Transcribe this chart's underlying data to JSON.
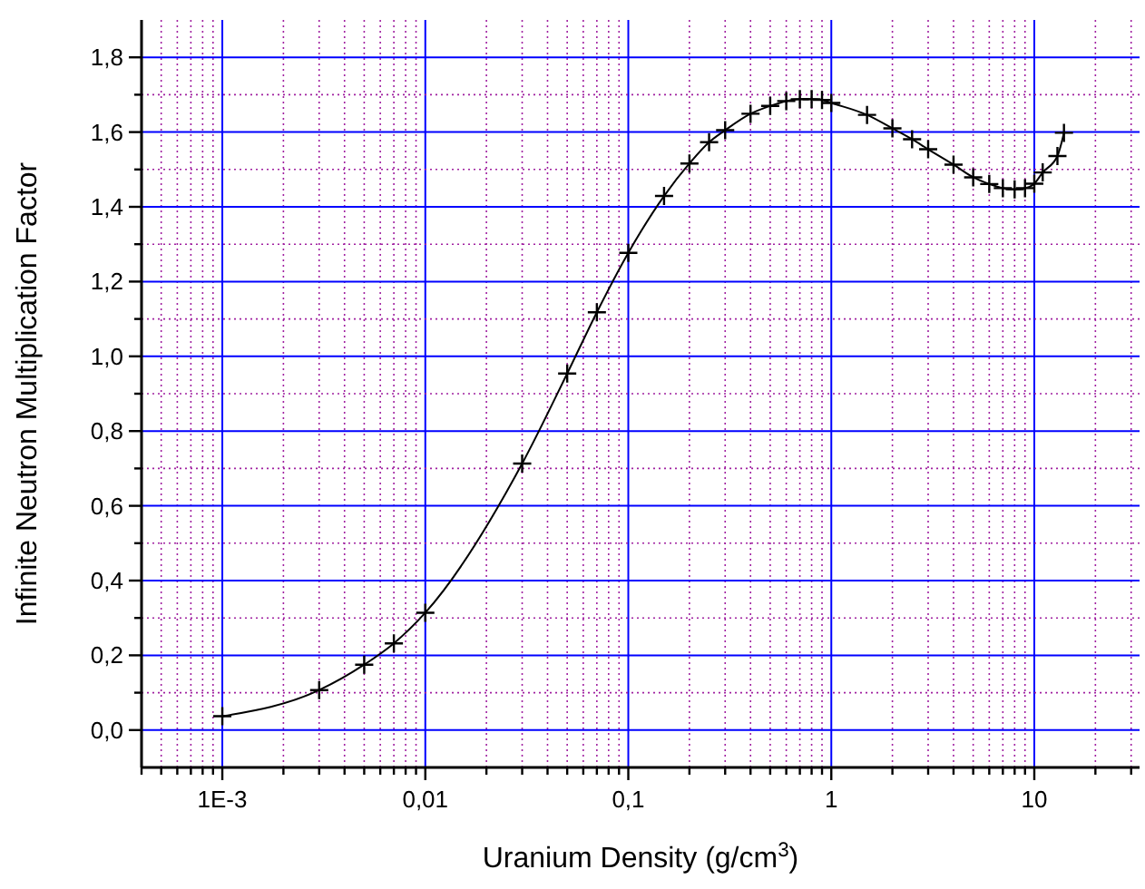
{
  "chart_data": {
    "type": "line",
    "xlabel": "Uranium Density (g/cm$^{3}$)",
    "ylabel": "Infinite Neutron Multiplication Factor",
    "log": "x",
    "grid": true,
    "marker": "cross",
    "line_style": "solid",
    "xlim": [
      0.0004,
      33
    ],
    "ylim": [
      -0.1,
      1.9
    ],
    "xticks": [
      {
        "value": 0.0004,
        "label": null
      },
      {
        "value": 0.0005,
        "label": null
      },
      {
        "value": 0.0006,
        "label": null
      },
      {
        "value": 0.0007,
        "label": null
      },
      {
        "value": 0.0008,
        "label": null
      },
      {
        "value": 0.0009,
        "label": null
      },
      {
        "value": 0.001,
        "label": "1E-3"
      },
      {
        "value": 0.002,
        "label": null
      },
      {
        "value": 0.003,
        "label": null
      },
      {
        "value": 0.004,
        "label": null
      },
      {
        "value": 0.005,
        "label": null
      },
      {
        "value": 0.006,
        "label": null
      },
      {
        "value": 0.007,
        "label": null
      },
      {
        "value": 0.008,
        "label": null
      },
      {
        "value": 0.009,
        "label": null
      },
      {
        "value": 0.01,
        "label": "0,01"
      },
      {
        "value": 0.02,
        "label": null
      },
      {
        "value": 0.03,
        "label": null
      },
      {
        "value": 0.04,
        "label": null
      },
      {
        "value": 0.05,
        "label": null
      },
      {
        "value": 0.06,
        "label": null
      },
      {
        "value": 0.07,
        "label": null
      },
      {
        "value": 0.08,
        "label": null
      },
      {
        "value": 0.09,
        "label": null
      },
      {
        "value": 0.1,
        "label": "0,1"
      },
      {
        "value": 0.2,
        "label": null
      },
      {
        "value": 0.3,
        "label": null
      },
      {
        "value": 0.4,
        "label": null
      },
      {
        "value": 0.5,
        "label": null
      },
      {
        "value": 0.6,
        "label": null
      },
      {
        "value": 0.7,
        "label": null
      },
      {
        "value": 0.8,
        "label": null
      },
      {
        "value": 0.9,
        "label": null
      },
      1,
      {
        "value": 2,
        "label": null
      },
      {
        "value": 3,
        "label": null
      },
      {
        "value": 4,
        "label": null
      },
      {
        "value": 5,
        "label": null
      },
      {
        "value": 6,
        "label": null
      },
      {
        "value": 7,
        "label": null
      },
      {
        "value": 8,
        "label": null
      },
      {
        "value": 9,
        "label": null
      },
      10,
      {
        "value": 20,
        "label": null
      },
      {
        "value": 30,
        "label": null
      }
    ],
    "yticks": [
      {
        "value": 0,
        "label": "0,0"
      },
      {
        "value": 0.1,
        "label": null
      },
      {
        "value": 0.2,
        "label": "0,2"
      },
      {
        "value": 0.3,
        "label": null
      },
      {
        "value": 0.4,
        "label": "0,4"
      },
      {
        "value": 0.5,
        "label": null
      },
      {
        "value": 0.6,
        "label": "0,6"
      },
      {
        "value": 0.7,
        "label": null
      },
      {
        "value": 0.8,
        "label": "0,8"
      },
      {
        "value": 0.9,
        "label": null
      },
      {
        "value": 1,
        "label": "1,0"
      },
      {
        "value": 1.1,
        "label": null
      },
      {
        "value": 1.2,
        "label": "1,2"
      },
      {
        "value": 1.3,
        "label": null
      },
      {
        "value": 1.4,
        "label": "1,4"
      },
      {
        "value": 1.5,
        "label": null
      },
      {
        "value": 1.6,
        "label": "1,6"
      },
      {
        "value": 1.7,
        "label": null
      },
      {
        "value": 1.8,
        "label": "1,8"
      }
    ],
    "series": [
      {
        "color": "#000000",
        "x": [
          0.001,
          0.003,
          0.005,
          0.007,
          0.01,
          0.03,
          0.05,
          0.07,
          0.1,
          0.15,
          0.2,
          0.25,
          0.3,
          0.4,
          0.5,
          0.6,
          0.7,
          0.8,
          0.9,
          1,
          1.5,
          2,
          2.5,
          3,
          4,
          5,
          6,
          7,
          8,
          9,
          10,
          11,
          13,
          14
        ],
        "values": [
          0.037,
          0.107,
          0.175,
          0.232,
          0.314,
          0.713,
          0.954,
          1.118,
          1.277,
          1.429,
          1.516,
          1.573,
          1.605,
          1.649,
          1.67,
          1.683,
          1.688,
          1.688,
          1.686,
          1.678,
          1.646,
          1.61,
          1.581,
          1.554,
          1.513,
          1.479,
          1.461,
          1.45,
          1.447,
          1.45,
          1.462,
          1.492,
          1.536,
          1.598
        ]
      }
    ]
  }
}
